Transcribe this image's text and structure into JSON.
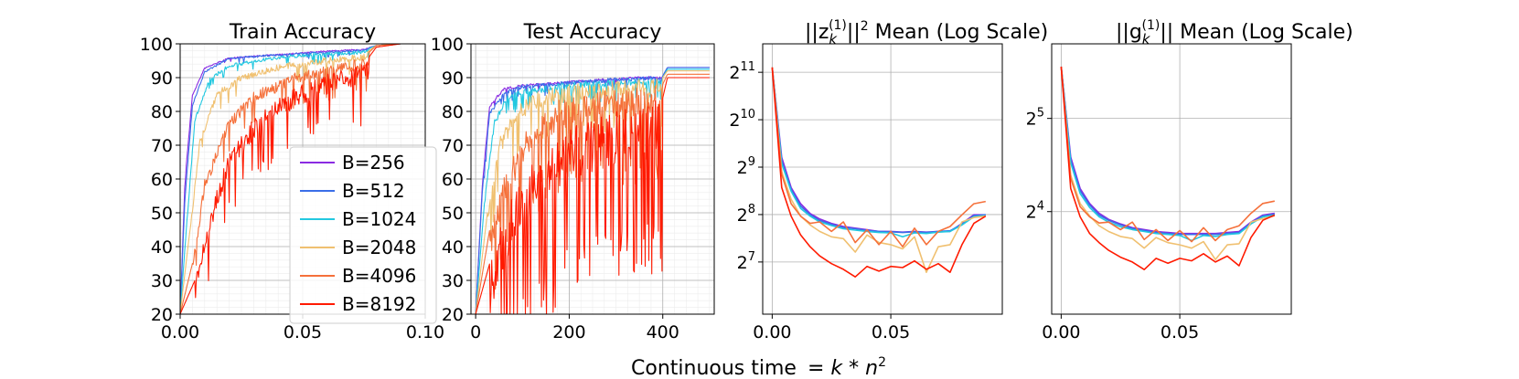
{
  "figure": {
    "xlabel_main": "Continuous time",
    "xlabel_formula_prefix": "= ",
    "xlabel_formula_k": "k",
    "xlabel_formula_times": " * ",
    "xlabel_formula_n": "n",
    "xlabel_formula_exp": "2"
  },
  "legend": {
    "entries": [
      "B=256",
      "B=512",
      "B=1024",
      "B=2048",
      "B=4096",
      "B=8192"
    ],
    "colors": [
      "#8a2be2",
      "#3a6ee8",
      "#22c8e0",
      "#f0c070",
      "#f5703a",
      "#ff1a00"
    ]
  },
  "panel3_title": {
    "pre": "||z",
    "sub": "k",
    "sup": "(1)",
    "post": "||",
    "post_sup": "2",
    "rest": " Mean (Log Scale)"
  },
  "panel4_title": {
    "pre": "||g",
    "sub": "k",
    "sup": "(1)",
    "post": "||",
    "rest": " Mean (Log Scale)"
  },
  "chart_data": [
    {
      "type": "line",
      "title": "Train Accuracy",
      "xlim": [
        0,
        0.1
      ],
      "ylim": [
        20,
        100
      ],
      "xticks": [
        "0.00",
        "0.05",
        "0.10"
      ],
      "yticks": [
        "20",
        "30",
        "40",
        "50",
        "60",
        "70",
        "80",
        "90",
        "100"
      ],
      "grid": true,
      "legend_position": "lower-right",
      "series": [
        {
          "name": "B=256",
          "x": [
            0,
            0.002,
            0.005,
            0.01,
            0.02,
            0.04,
            0.06,
            0.075,
            0.08,
            0.09,
            0.1
          ],
          "y": [
            20,
            60,
            85,
            93,
            96,
            97,
            98,
            98.5,
            99.5,
            100,
            100
          ]
        },
        {
          "name": "B=512",
          "x": [
            0,
            0.002,
            0.005,
            0.01,
            0.02,
            0.04,
            0.06,
            0.075,
            0.08,
            0.09,
            0.1
          ],
          "y": [
            20,
            55,
            82,
            92,
            96,
            97,
            97.8,
            98.3,
            99.5,
            100,
            100
          ]
        },
        {
          "name": "B=1024",
          "x": [
            0,
            0.003,
            0.006,
            0.012,
            0.02,
            0.04,
            0.06,
            0.075,
            0.08,
            0.09,
            0.1
          ],
          "y": [
            20,
            50,
            78,
            90,
            94,
            96.5,
            97.5,
            98,
            99.5,
            100,
            100
          ]
        },
        {
          "name": "B=2048",
          "x": [
            0,
            0.004,
            0.008,
            0.015,
            0.025,
            0.04,
            0.06,
            0.075,
            0.08,
            0.09,
            0.1
          ],
          "y": [
            20,
            45,
            72,
            86,
            91,
            94,
            96,
            97,
            99.5,
            100,
            100
          ]
        },
        {
          "name": "B=4096",
          "x": [
            0,
            0.005,
            0.01,
            0.02,
            0.03,
            0.045,
            0.06,
            0.075,
            0.08,
            0.09,
            0.1
          ],
          "y": [
            20,
            35,
            60,
            78,
            86,
            91,
            94,
            96,
            99.5,
            100,
            100
          ]
        },
        {
          "name": "B=8192",
          "x": [
            0,
            0.006,
            0.012,
            0.02,
            0.03,
            0.04,
            0.05,
            0.06,
            0.07,
            0.075,
            0.08,
            0.09,
            0.1
          ],
          "y": [
            20,
            30,
            50,
            68,
            78,
            84,
            88,
            91,
            93,
            94,
            99,
            100,
            100
          ]
        }
      ]
    },
    {
      "type": "line",
      "title": "Test Accuracy",
      "xlim": [
        -10,
        510
      ],
      "ylim": [
        20,
        100
      ],
      "xticks": [
        "0",
        "200",
        "400"
      ],
      "yticks": [
        "20",
        "30",
        "40",
        "50",
        "60",
        "70",
        "80",
        "90",
        "100"
      ],
      "grid": true,
      "series": [
        {
          "name": "B=256",
          "x": [
            0,
            15,
            30,
            60,
            100,
            200,
            300,
            400,
            410,
            500
          ],
          "y": [
            20,
            60,
            82,
            87,
            88,
            89,
            90,
            90.5,
            93,
            93
          ]
        },
        {
          "name": "B=512",
          "x": [
            0,
            15,
            30,
            60,
            100,
            200,
            300,
            400,
            410,
            500
          ],
          "y": [
            20,
            58,
            80,
            86,
            88,
            89,
            90,
            90.5,
            93,
            93
          ]
        },
        {
          "name": "B=1024",
          "x": [
            0,
            20,
            40,
            70,
            100,
            200,
            300,
            400,
            410,
            500
          ],
          "y": [
            20,
            55,
            78,
            85,
            87,
            88.5,
            89.5,
            90,
            92.5,
            92.5
          ]
        },
        {
          "name": "B=2048",
          "x": [
            0,
            25,
            50,
            90,
            130,
            200,
            300,
            400,
            410,
            500
          ],
          "y": [
            20,
            50,
            72,
            82,
            86,
            88,
            89,
            90,
            92,
            92
          ]
        },
        {
          "name": "B=4096",
          "x": [
            0,
            30,
            70,
            120,
            170,
            250,
            330,
            400,
            410,
            500
          ],
          "y": [
            20,
            45,
            65,
            77,
            83,
            86,
            87,
            88,
            91,
            91
          ]
        },
        {
          "name": "B=8192",
          "x": [
            0,
            30,
            60,
            100,
            150,
            200,
            250,
            300,
            350,
            400,
            410,
            500
          ],
          "y": [
            20,
            35,
            50,
            62,
            70,
            75,
            78,
            80,
            82,
            84,
            90,
            90
          ]
        }
      ]
    },
    {
      "type": "line",
      "title": "||z_k^(1)||^2 Mean (Log Scale)",
      "yscale": "log2",
      "xlim": [
        -0.004,
        0.097
      ],
      "ylim_log2": [
        5.9,
        11.6
      ],
      "xticks": [
        "0.00",
        "0.05"
      ],
      "yticks": [
        "2^7",
        "2^8",
        "2^9",
        "2^10",
        "2^11"
      ],
      "grid": true,
      "series": [
        {
          "name": "B=256",
          "x": [
            0,
            0.004,
            0.008,
            0.012,
            0.016,
            0.02,
            0.025,
            0.03,
            0.035,
            0.04,
            0.045,
            0.05,
            0.055,
            0.06,
            0.065,
            0.07,
            0.075,
            0.08,
            0.085,
            0.09
          ],
          "y": [
            2200,
            590,
            380,
            300,
            260,
            240,
            225,
            215,
            210,
            205,
            200,
            200,
            198,
            200,
            198,
            200,
            200,
            225,
            255,
            255
          ]
        },
        {
          "name": "B=512",
          "x": [
            0,
            0.004,
            0.008,
            0.012,
            0.016,
            0.02,
            0.025,
            0.03,
            0.035,
            0.04,
            0.045,
            0.05,
            0.055,
            0.06,
            0.065,
            0.07,
            0.075,
            0.08,
            0.085,
            0.09
          ],
          "y": [
            2200,
            560,
            370,
            290,
            255,
            235,
            222,
            212,
            208,
            203,
            200,
            199,
            197,
            199,
            197,
            200,
            202,
            222,
            252,
            255
          ]
        },
        {
          "name": "B=1024",
          "x": [
            0,
            0.004,
            0.008,
            0.012,
            0.016,
            0.02,
            0.025,
            0.03,
            0.035,
            0.04,
            0.045,
            0.05,
            0.055,
            0.06,
            0.065,
            0.07,
            0.075,
            0.08,
            0.085,
            0.09
          ],
          "y": [
            2200,
            540,
            360,
            280,
            250,
            230,
            218,
            208,
            204,
            200,
            197,
            196,
            185,
            196,
            194,
            198,
            200,
            220,
            248,
            252
          ]
        },
        {
          "name": "B=2048",
          "x": [
            0,
            0.004,
            0.008,
            0.012,
            0.016,
            0.02,
            0.025,
            0.03,
            0.035,
            0.04,
            0.045,
            0.05,
            0.055,
            0.06,
            0.065,
            0.07,
            0.075,
            0.08,
            0.085,
            0.09
          ],
          "y": [
            2200,
            480,
            320,
            250,
            220,
            200,
            185,
            180,
            148,
            190,
            170,
            165,
            155,
            185,
            110,
            160,
            165,
            230,
            245,
            250
          ]
        },
        {
          "name": "B=4096",
          "x": [
            0,
            0.004,
            0.008,
            0.012,
            0.016,
            0.02,
            0.025,
            0.03,
            0.035,
            0.04,
            0.045,
            0.05,
            0.055,
            0.06,
            0.065,
            0.07,
            0.075,
            0.08,
            0.085,
            0.09
          ],
          "y": [
            2200,
            460,
            300,
            250,
            225,
            230,
            200,
            230,
            170,
            205,
            165,
            200,
            160,
            210,
            165,
            200,
            215,
            255,
            300,
            310
          ]
        },
        {
          "name": "B=8192",
          "x": [
            0,
            0.004,
            0.008,
            0.012,
            0.016,
            0.02,
            0.025,
            0.03,
            0.035,
            0.04,
            0.045,
            0.05,
            0.055,
            0.06,
            0.065,
            0.07,
            0.075,
            0.08,
            0.085,
            0.09
          ],
          "y": [
            2200,
            380,
            250,
            190,
            160,
            140,
            125,
            115,
            103,
            120,
            112,
            120,
            118,
            130,
            115,
            125,
            110,
            165,
            225,
            250
          ]
        }
      ]
    },
    {
      "type": "line",
      "title": "||g_k^(1)|| Mean (Log Scale)",
      "yscale": "log2",
      "xlim": [
        -0.004,
        0.097
      ],
      "ylim_log2": [
        2.9,
        5.8
      ],
      "xticks": [
        "0.00",
        "0.05"
      ],
      "yticks": [
        "2^4",
        "2^5"
      ],
      "grid": true,
      "series": [
        {
          "name": "B=256",
          "x": [
            0,
            0.004,
            0.008,
            0.012,
            0.016,
            0.02,
            0.025,
            0.03,
            0.035,
            0.04,
            0.045,
            0.05,
            0.055,
            0.06,
            0.065,
            0.07,
            0.075,
            0.08,
            0.085,
            0.09
          ],
          "y": [
            47,
            24,
            19,
            17,
            15.8,
            15.1,
            14.6,
            14.2,
            14.0,
            13.8,
            13.7,
            13.6,
            13.6,
            13.6,
            13.6,
            13.7,
            13.8,
            14.8,
            15.6,
            15.8
          ]
        },
        {
          "name": "B=512",
          "x": [
            0,
            0.004,
            0.008,
            0.012,
            0.016,
            0.02,
            0.025,
            0.03,
            0.035,
            0.04,
            0.045,
            0.05,
            0.055,
            0.06,
            0.065,
            0.07,
            0.075,
            0.08,
            0.085,
            0.09
          ],
          "y": [
            47,
            23.5,
            18.7,
            16.8,
            15.6,
            15,
            14.5,
            14.1,
            13.9,
            13.7,
            13.6,
            13.5,
            13.5,
            13.5,
            13.5,
            13.6,
            13.7,
            14.7,
            15.5,
            15.7
          ]
        },
        {
          "name": "B=1024",
          "x": [
            0,
            0.004,
            0.008,
            0.012,
            0.016,
            0.02,
            0.025,
            0.03,
            0.035,
            0.04,
            0.045,
            0.05,
            0.055,
            0.06,
            0.065,
            0.07,
            0.075,
            0.08,
            0.085,
            0.09
          ],
          "y": [
            47,
            23,
            18.3,
            16.5,
            15.4,
            14.8,
            14.3,
            14,
            13.8,
            13.6,
            13.5,
            13.4,
            12.9,
            13.4,
            13.3,
            13.5,
            13.6,
            14.6,
            15.4,
            15.6
          ]
        },
        {
          "name": "B=2048",
          "x": [
            0,
            0.004,
            0.008,
            0.012,
            0.016,
            0.02,
            0.025,
            0.03,
            0.035,
            0.04,
            0.045,
            0.05,
            0.055,
            0.06,
            0.065,
            0.07,
            0.075,
            0.08,
            0.085,
            0.09
          ],
          "y": [
            47,
            21,
            17,
            15.5,
            14.4,
            13.8,
            13.3,
            13.1,
            12.2,
            13.2,
            12.7,
            12.5,
            12.2,
            12.8,
            11.2,
            12.5,
            12.6,
            14.8,
            15.2,
            15.5
          ]
        },
        {
          "name": "B=4096",
          "x": [
            0,
            0.004,
            0.008,
            0.012,
            0.016,
            0.02,
            0.025,
            0.03,
            0.035,
            0.04,
            0.045,
            0.05,
            0.055,
            0.06,
            0.065,
            0.07,
            0.075,
            0.08,
            0.085,
            0.09
          ],
          "y": [
            47,
            20.5,
            16.6,
            15.4,
            14.7,
            14.8,
            14,
            14.8,
            13,
            14,
            12.9,
            13.9,
            12.8,
            14.2,
            12.9,
            14,
            14.4,
            15.8,
            17,
            17.3
          ]
        },
        {
          "name": "B=8192",
          "x": [
            0,
            0.004,
            0.008,
            0.012,
            0.016,
            0.02,
            0.025,
            0.03,
            0.035,
            0.04,
            0.045,
            0.05,
            0.055,
            0.06,
            0.065,
            0.07,
            0.075,
            0.08,
            0.085,
            0.09
          ],
          "y": [
            47,
            19,
            15.4,
            13.6,
            12.7,
            12,
            11.4,
            11,
            10.4,
            11.3,
            10.9,
            11.3,
            11.1,
            11.7,
            11,
            11.5,
            10.7,
            13.2,
            15,
            15.6
          ]
        }
      ]
    }
  ]
}
